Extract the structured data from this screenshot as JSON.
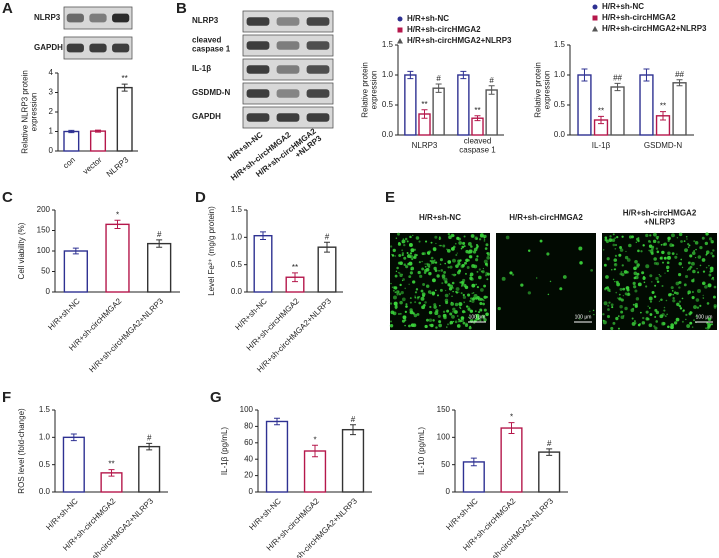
{
  "panels": [
    "A",
    "B",
    "C",
    "D",
    "E",
    "F",
    "G"
  ],
  "blots": [
    {
      "rows": [
        "NLRP3",
        "GAPDH"
      ]
    },
    {
      "rows": [
        "NLRP3",
        [
          "cleaved",
          "caspase 1"
        ],
        "IL-1β",
        "GSDMD-N",
        "GAPDH"
      ],
      "lanes": [
        "H/R+sh-NC",
        "H/R+sh-circHMGA2",
        [
          "H/R+sh-circHMGA2",
          "+NLRP3"
        ]
      ]
    }
  ],
  "images": {
    "labels": [
      "H/R+sh-NC",
      "H/R+sh-circHMGA2",
      [
        "H/R+sh-circHMGA2",
        "+NLRP3"
      ]
    ],
    "scale_bar": "100 μm"
  },
  "chart_data": [
    {
      "type": "bar",
      "ylabel": [
        "Relative NLRP3 protein",
        "expression"
      ],
      "categories": [
        "con",
        "vector",
        "NLRP3"
      ],
      "values": [
        1.0,
        1.02,
        3.25
      ],
      "errors": [
        0.06,
        0.05,
        0.18
      ],
      "annotations": [
        null,
        null,
        "**"
      ],
      "colors": [
        "#2e3192",
        "#b5174b",
        "#333333"
      ],
      "ylim": [
        0,
        4
      ],
      "yticks": [
        0,
        1,
        2,
        3,
        4
      ]
    },
    {
      "type": "grouped-bar",
      "ylabel": [
        "Relative protein",
        "expression"
      ],
      "categories": [
        "NLRP3",
        [
          "cleaved",
          "caspase 1"
        ]
      ],
      "series": [
        {
          "name": "H/R+sh-NC",
          "color": "#2e3192",
          "marker": "circle",
          "values": [
            1.0,
            1.0
          ],
          "errors": [
            0.06,
            0.06
          ],
          "annotations": [
            null,
            null
          ]
        },
        {
          "name": "H/R+sh-circHMGA2",
          "color": "#b5174b",
          "marker": "square",
          "values": [
            0.35,
            0.28
          ],
          "errors": [
            0.07,
            0.04
          ],
          "annotations": [
            "**",
            "**"
          ]
        },
        {
          "name": "H/R+sh-circHMGA2+NLRP3",
          "color": "#555555",
          "marker": "triangle",
          "values": [
            0.78,
            0.75
          ],
          "errors": [
            0.07,
            0.07
          ],
          "annotations": [
            "#",
            "#"
          ]
        }
      ],
      "legend": true,
      "ylim": [
        0,
        1.5
      ],
      "yticks": [
        {
          "value": 0,
          "label": "0.0"
        },
        0.5,
        {
          "value": 1,
          "label": "1.0"
        },
        1.5
      ]
    },
    {
      "type": "grouped-bar",
      "ylabel": [
        "Relative protein",
        "expression"
      ],
      "categories": [
        "IL-1β",
        "GSDMD-N"
      ],
      "series": [
        {
          "name": "H/R+sh-NC",
          "color": "#2e3192",
          "marker": "circle",
          "values": [
            1.0,
            1.0
          ],
          "errors": [
            0.1,
            0.1
          ],
          "annotations": [
            null,
            null
          ]
        },
        {
          "name": "H/R+sh-circHMGA2",
          "color": "#b5174b",
          "marker": "square",
          "values": [
            0.25,
            0.32
          ],
          "errors": [
            0.06,
            0.07
          ],
          "annotations": [
            "**",
            "**"
          ]
        },
        {
          "name": "H/R+sh-circHMGA2+NLRP3",
          "color": "#555555",
          "marker": "triangle",
          "values": [
            0.8,
            0.87
          ],
          "errors": [
            0.06,
            0.05
          ],
          "annotations": [
            "##",
            "##"
          ]
        }
      ],
      "legend": true,
      "ylim": [
        0,
        1.5
      ],
      "yticks": [
        {
          "value": 0,
          "label": "0.0"
        },
        0.5,
        {
          "value": 1,
          "label": "1.0"
        },
        1.5
      ]
    },
    {
      "type": "bar",
      "ylabel": "Cell viability (%)",
      "categories": [
        "H/R+sh-NC",
        "H/R+sh-circHMGA2",
        "H/R+sh-circHMGA2+NLRP3"
      ],
      "values": [
        100,
        165,
        118
      ],
      "errors": [
        7,
        10,
        9
      ],
      "annotations": [
        null,
        "*",
        "#"
      ],
      "colors": [
        "#2e3192",
        "#b5174b",
        "#333333"
      ],
      "ylim": [
        0,
        200
      ],
      "yticks": [
        0,
        50,
        100,
        150,
        200
      ]
    },
    {
      "type": "bar",
      "ylabel": "Level Fe²⁺ (mg/g protein)",
      "categories": [
        "H/R+sh-NC",
        "H/R+sh-circHMGA2",
        "H/R+sh-circHMGA2+NLRP3"
      ],
      "values": [
        1.03,
        0.27,
        0.82
      ],
      "errors": [
        0.07,
        0.08,
        0.09
      ],
      "annotations": [
        null,
        "**",
        "#"
      ],
      "colors": [
        "#2e3192",
        "#b5174b",
        "#333333"
      ],
      "ylim": [
        0,
        1.5
      ],
      "yticks": [
        {
          "value": 0,
          "label": "0.0"
        },
        0.5,
        {
          "value": 1,
          "label": "1.0"
        },
        1.5
      ]
    },
    {
      "type": "bar",
      "ylabel": "ROS level (fold-change)",
      "categories": [
        "H/R+sh-NC",
        "H/R+sh-circHMGA2",
        "H/R+sh-circHMGA2+NLRP3"
      ],
      "values": [
        1.0,
        0.35,
        0.83
      ],
      "errors": [
        0.06,
        0.06,
        0.06
      ],
      "annotations": [
        null,
        "**",
        "#"
      ],
      "colors": [
        "#2e3192",
        "#b5174b",
        "#333333"
      ],
      "ylim": [
        0,
        1.5
      ],
      "yticks": [
        {
          "value": 0,
          "label": "0.0"
        },
        0.5,
        {
          "value": 1,
          "label": "1.0"
        },
        1.5
      ]
    },
    {
      "type": "bar",
      "ylabel": "IL-1β (pg/mL)",
      "categories": [
        "H/R+sh-NC",
        "H/R+sh-circHMGA2",
        "H/R+sh-circHMGA2+NLRP3"
      ],
      "values": [
        86,
        50,
        76
      ],
      "errors": [
        4,
        7,
        6
      ],
      "annotations": [
        null,
        "*",
        "#"
      ],
      "colors": [
        "#2e3192",
        "#b5174b",
        "#333333"
      ],
      "ylim": [
        0,
        100
      ],
      "yticks": [
        0,
        20,
        40,
        60,
        80,
        100
      ]
    },
    {
      "type": "bar",
      "ylabel": "IL-10 (pg/mL)",
      "categories": [
        "H/R+sh-NC",
        "H/R+sh-circHMGA2",
        "H/R+sh-circHMGA2+NLRP3"
      ],
      "values": [
        55,
        117,
        73
      ],
      "errors": [
        7,
        10,
        6
      ],
      "annotations": [
        null,
        "*",
        "#"
      ],
      "colors": [
        "#2e3192",
        "#b5174b",
        "#333333"
      ],
      "ylim": [
        0,
        150
      ],
      "yticks": [
        0,
        50,
        100,
        150
      ]
    }
  ]
}
